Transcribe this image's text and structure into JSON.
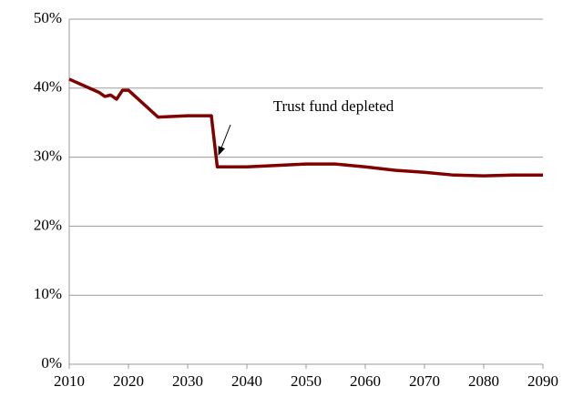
{
  "chart_data": {
    "type": "line",
    "x": [
      2010,
      2015,
      2016,
      2017,
      2018,
      2019,
      2020,
      2025,
      2030,
      2034,
      2035,
      2040,
      2050,
      2055,
      2060,
      2065,
      2070,
      2075,
      2080,
      2085,
      2090
    ],
    "values": [
      41.3,
      39.4,
      38.8,
      39.0,
      38.4,
      39.7,
      39.7,
      35.8,
      36.0,
      36.0,
      28.6,
      28.6,
      29.0,
      29.0,
      28.6,
      28.1,
      27.8,
      27.4,
      27.3,
      27.4,
      27.4
    ],
    "color": "#800000",
    "xlim": [
      2010,
      2090
    ],
    "xticks": [
      2010,
      2020,
      2030,
      2040,
      2050,
      2060,
      2070,
      2080,
      2090
    ],
    "ylim": [
      0,
      50
    ],
    "yticks": [
      {
        "value": 0,
        "label": "0%"
      },
      {
        "value": 10,
        "label": "10%"
      },
      {
        "value": 20,
        "label": "20%"
      },
      {
        "value": 30,
        "label": "30%"
      },
      {
        "value": 40,
        "label": "40%"
      },
      {
        "value": 50,
        "label": "50%"
      }
    ],
    "grid": true,
    "annotation": "Trust fund depleted"
  }
}
